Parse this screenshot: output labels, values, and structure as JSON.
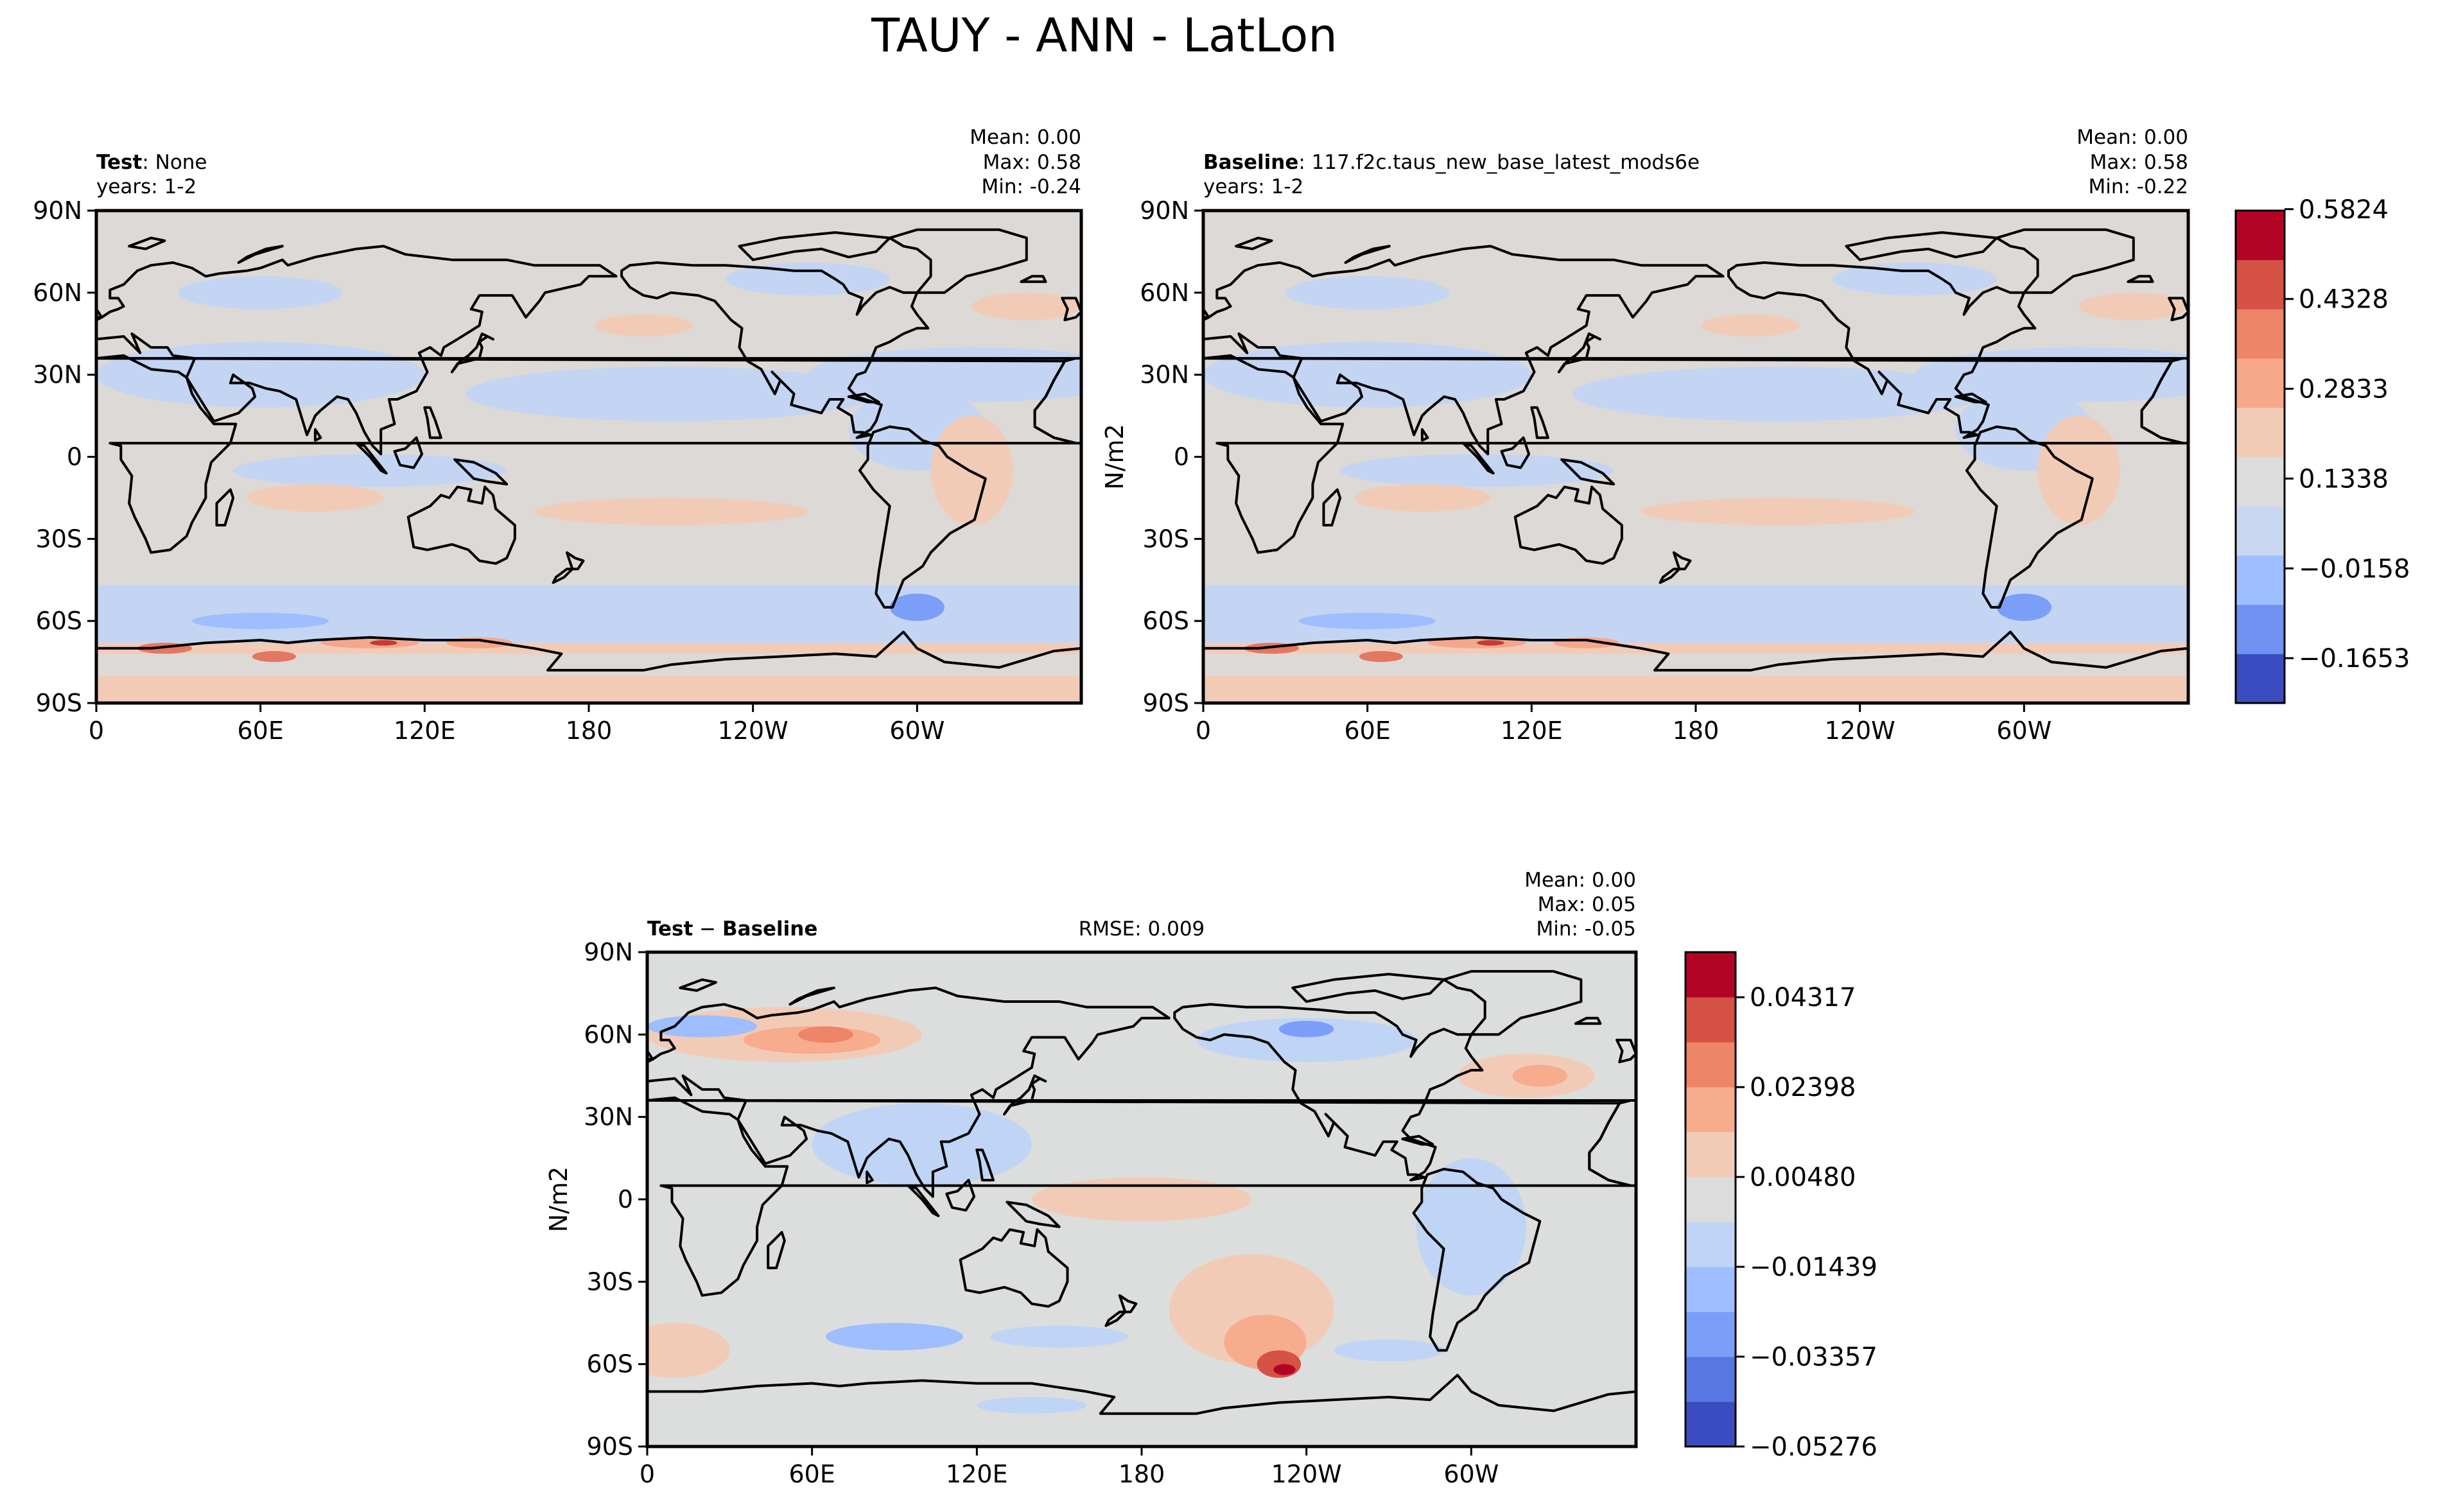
{
  "figure": {
    "title": "TAUY - ANN - LatLon"
  },
  "colors": {
    "land": "#000000",
    "neutral_test": "#ddd9d6",
    "neutral_diff": "#dcdddd"
  },
  "chart_data": [
    {
      "type": "heatmap",
      "id": "test",
      "title_bold": "Test",
      "title_rest": ": None",
      "years": "years: 1-2",
      "stats": {
        "mean": "Mean:  0.00",
        "max": "Max:  0.58",
        "min": "Min: -0.24"
      },
      "ylabel": "",
      "xticks": [
        "0",
        "60E",
        "120E",
        "180",
        "120W",
        "60W"
      ],
      "yticks": [
        "90N",
        "60N",
        "30N",
        "0",
        "30S",
        "60S",
        "90S"
      ],
      "xlim": [
        0,
        360
      ],
      "ylim": [
        -90,
        90
      ],
      "projection": "PlateCarree, central longitude 180"
    },
    {
      "type": "heatmap",
      "id": "baseline",
      "title_bold": "Baseline",
      "title_rest": ": 117.f2c.taus_new_base_latest_mods6e",
      "years": "years: 1-2",
      "stats": {
        "mean": "Mean:  0.00",
        "max": "Max:  0.58",
        "min": "Min: -0.22"
      },
      "ylabel": "N/m2",
      "xticks": [
        "0",
        "60E",
        "120E",
        "180",
        "120W",
        "60W"
      ],
      "yticks": [
        "90N",
        "60N",
        "30N",
        "0",
        "30S",
        "60S",
        "90S"
      ],
      "xlim": [
        0,
        360
      ],
      "ylim": [
        -90,
        90
      ],
      "projection": "PlateCarree, central longitude 180",
      "colorbar": {
        "colors": [
          "#3b4cc0",
          "#6f92f3",
          "#9ebeff",
          "#c9d7f0",
          "#dddcdc",
          "#f2cbb7",
          "#f7a889",
          "#ee8468",
          "#d65244",
          "#b40426"
        ],
        "tick_labels": [
          "0.5824",
          "0.4328",
          "0.2833",
          "0.1338",
          "−0.0158",
          "−0.1653"
        ],
        "tick_values": [
          0.5824,
          0.4328,
          0.2833,
          0.1338,
          -0.0158,
          -0.1653
        ],
        "range": [
          -0.24,
          0.58
        ]
      }
    },
    {
      "type": "heatmap",
      "id": "diff",
      "title_bold": "Test",
      "title_minus": "−",
      "title_bold2": "Baseline",
      "rmse": "RMSE: 0.009",
      "stats": {
        "mean": "Mean:  0.00",
        "max": "Max:  0.05",
        "min": "Min: -0.05"
      },
      "ylabel": "N/m2",
      "xticks": [
        "0",
        "60E",
        "120E",
        "180",
        "120W",
        "60W"
      ],
      "yticks": [
        "90N",
        "60N",
        "30N",
        "0",
        "30S",
        "60S",
        "90S"
      ],
      "xlim": [
        0,
        360
      ],
      "ylim": [
        -90,
        90
      ],
      "projection": "PlateCarree, central longitude 180",
      "colorbar": {
        "colors": [
          "#3b4cc0",
          "#5977e3",
          "#7b9ff9",
          "#9ebeff",
          "#c0d4f5",
          "#dddcdc",
          "#f2cbb7",
          "#f7ac8e",
          "#ee8468",
          "#d65244",
          "#b40426"
        ],
        "tick_labels": [
          "0.04317",
          "0.02398",
          "0.00480",
          "−0.01439",
          "−0.03357",
          "−0.05276"
        ],
        "tick_values": [
          0.04317,
          0.02398,
          0.0048,
          -0.01439,
          -0.03357,
          -0.05276
        ],
        "range": [
          -0.05276,
          0.0528
        ]
      }
    }
  ]
}
